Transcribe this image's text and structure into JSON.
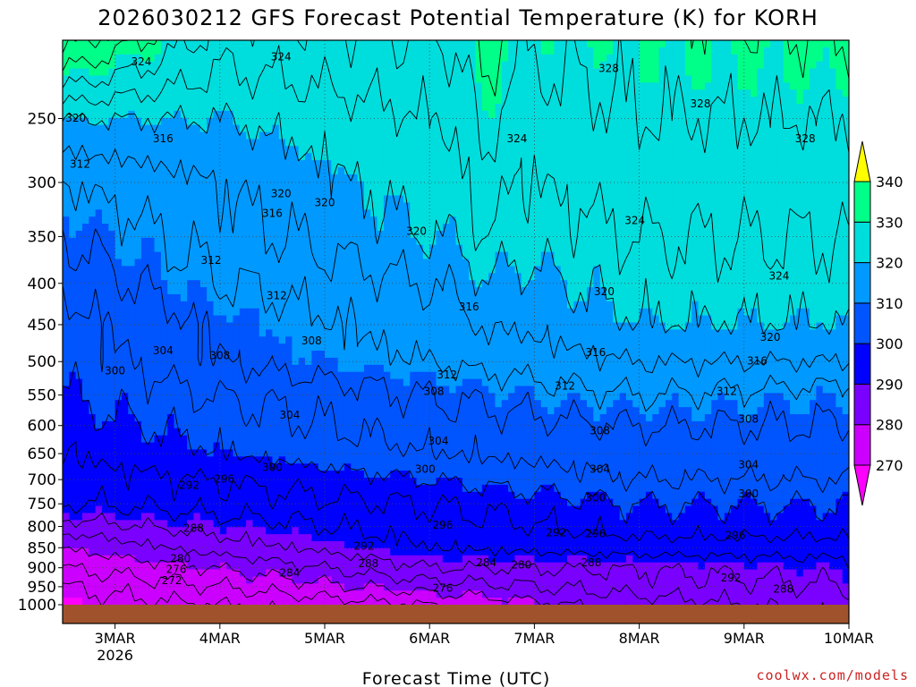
{
  "chart_data": {
    "type": "heatmap",
    "title": "2026030212 GFS Forecast Potential Temperature (K) for KORH",
    "xlabel": "Forecast Time (UTC)",
    "ylabel": "",
    "credit": "coolwx.com/models",
    "x_ticks": [
      {
        "label": "3MAR",
        "sublabel": "2026",
        "hour": 12
      },
      {
        "label": "4MAR",
        "sublabel": "",
        "hour": 36
      },
      {
        "label": "5MAR",
        "sublabel": "",
        "hour": 60
      },
      {
        "label": "6MAR",
        "sublabel": "",
        "hour": 84
      },
      {
        "label": "7MAR",
        "sublabel": "",
        "hour": 108
      },
      {
        "label": "8MAR",
        "sublabel": "",
        "hour": 132
      },
      {
        "label": "9MAR",
        "sublabel": "",
        "hour": 156
      },
      {
        "label": "10MAR",
        "sublabel": "",
        "hour": 180
      }
    ],
    "x_range_hours": [
      0,
      180
    ],
    "y_ticks_hpa": [
      250,
      300,
      350,
      400,
      450,
      500,
      550,
      600,
      650,
      700,
      750,
      800,
      850,
      900,
      950,
      1000
    ],
    "y_range_hpa": [
      200,
      1000
    ],
    "colorbar": {
      "levels": [
        270,
        280,
        290,
        300,
        310,
        320,
        330,
        340
      ],
      "colors": [
        "#ff00ff",
        "#cc00ff",
        "#7a00ff",
        "#0000ff",
        "#0055ff",
        "#0099ff",
        "#00dddd",
        "#00ff88",
        "#55ff00",
        "#ffff00"
      ]
    },
    "series": [
      {
        "name": "theta_profile_hour_0",
        "hour": 0,
        "pressure_hpa": [
          1000,
          950,
          900,
          850,
          800,
          750,
          700,
          650,
          600,
          550,
          500,
          450,
          400,
          350,
          300,
          250,
          200
        ],
        "theta_k": [
          270,
          272,
          276,
          280,
          286,
          292,
          294,
          296,
          298,
          300,
          301,
          302,
          305,
          308,
          312,
          320,
          338
        ]
      },
      {
        "name": "theta_profile_hour_36",
        "hour": 36,
        "pressure_hpa": [
          1000,
          950,
          900,
          850,
          800,
          750,
          700,
          650,
          600,
          550,
          500,
          450,
          400,
          350,
          300,
          250,
          200
        ],
        "theta_k": [
          272,
          276,
          280,
          286,
          290,
          294,
          296,
          300,
          302,
          304,
          308,
          309,
          312,
          314,
          316,
          320,
          326
        ]
      },
      {
        "name": "theta_profile_hour_84",
        "hour": 84,
        "pressure_hpa": [
          1000,
          950,
          900,
          850,
          800,
          750,
          700,
          650,
          600,
          550,
          500,
          450,
          400,
          350,
          300,
          250,
          200
        ],
        "theta_k": [
          276,
          282,
          288,
          292,
          294,
          296,
          300,
          304,
          306,
          308,
          312,
          314,
          316,
          320,
          322,
          324,
          328
        ]
      },
      {
        "name": "theta_profile_hour_132",
        "hour": 132,
        "pressure_hpa": [
          1000,
          950,
          900,
          850,
          800,
          750,
          700,
          650,
          600,
          550,
          500,
          450,
          400,
          350,
          300,
          250,
          200
        ],
        "theta_k": [
          282,
          286,
          288,
          294,
          298,
          300,
          304,
          306,
          308,
          312,
          316,
          320,
          322,
          324,
          326,
          328,
          330
        ]
      },
      {
        "name": "theta_profile_hour_180",
        "hour": 180,
        "pressure_hpa": [
          1000,
          950,
          900,
          850,
          800,
          750,
          700,
          650,
          600,
          550,
          500,
          450,
          400,
          350,
          300,
          250,
          200
        ],
        "theta_k": [
          286,
          288,
          290,
          294,
          298,
          300,
          304,
          306,
          308,
          310,
          316,
          320,
          322,
          324,
          326,
          328,
          332
        ]
      }
    ],
    "contour_labels": [
      {
        "text": "324",
        "hour": 18,
        "hpa": 213
      },
      {
        "text": "324",
        "hour": 50,
        "hpa": 210
      },
      {
        "text": "328",
        "hour": 125,
        "hpa": 217
      },
      {
        "text": "328",
        "hour": 146,
        "hpa": 240
      },
      {
        "text": "328",
        "hour": 170,
        "hpa": 265
      },
      {
        "text": "320",
        "hour": 3,
        "hpa": 250
      },
      {
        "text": "316",
        "hour": 23,
        "hpa": 265
      },
      {
        "text": "312",
        "hour": 4,
        "hpa": 285
      },
      {
        "text": "324",
        "hour": 104,
        "hpa": 265
      },
      {
        "text": "320",
        "hour": 50,
        "hpa": 310
      },
      {
        "text": "316",
        "hour": 48,
        "hpa": 328
      },
      {
        "text": "320",
        "hour": 60,
        "hpa": 318
      },
      {
        "text": "320",
        "hour": 81,
        "hpa": 345
      },
      {
        "text": "324",
        "hour": 131,
        "hpa": 335
      },
      {
        "text": "312",
        "hour": 34,
        "hpa": 375
      },
      {
        "text": "324",
        "hour": 164,
        "hpa": 392
      },
      {
        "text": "320",
        "hour": 124,
        "hpa": 410
      },
      {
        "text": "312",
        "hour": 49,
        "hpa": 415
      },
      {
        "text": "316",
        "hour": 93,
        "hpa": 428
      },
      {
        "text": "320",
        "hour": 162,
        "hpa": 467
      },
      {
        "text": "304",
        "hour": 23,
        "hpa": 485
      },
      {
        "text": "308",
        "hour": 36,
        "hpa": 492
      },
      {
        "text": "308",
        "hour": 57,
        "hpa": 472
      },
      {
        "text": "316",
        "hour": 122,
        "hpa": 488
      },
      {
        "text": "316",
        "hour": 159,
        "hpa": 500
      },
      {
        "text": "300",
        "hour": 12,
        "hpa": 514
      },
      {
        "text": "312",
        "hour": 88,
        "hpa": 520
      },
      {
        "text": "312",
        "hour": 115,
        "hpa": 537
      },
      {
        "text": "308",
        "hour": 85,
        "hpa": 545
      },
      {
        "text": "312",
        "hour": 152,
        "hpa": 545
      },
      {
        "text": "304",
        "hour": 52,
        "hpa": 583
      },
      {
        "text": "308",
        "hour": 157,
        "hpa": 590
      },
      {
        "text": "308",
        "hour": 123,
        "hpa": 610
      },
      {
        "text": "304",
        "hour": 86,
        "hpa": 628
      },
      {
        "text": "300",
        "hour": 48,
        "hpa": 677
      },
      {
        "text": "300",
        "hour": 83,
        "hpa": 680
      },
      {
        "text": "304",
        "hour": 123,
        "hpa": 680
      },
      {
        "text": "304",
        "hour": 157,
        "hpa": 672
      },
      {
        "text": "292",
        "hour": 29,
        "hpa": 712
      },
      {
        "text": "296",
        "hour": 37,
        "hpa": 700
      },
      {
        "text": "300",
        "hour": 122,
        "hpa": 738
      },
      {
        "text": "300",
        "hour": 157,
        "hpa": 730
      },
      {
        "text": "288",
        "hour": 30,
        "hpa": 805
      },
      {
        "text": "296",
        "hour": 87,
        "hpa": 798
      },
      {
        "text": "292",
        "hour": 113,
        "hpa": 815
      },
      {
        "text": "296",
        "hour": 122,
        "hpa": 818
      },
      {
        "text": "296",
        "hour": 154,
        "hpa": 822
      },
      {
        "text": "292",
        "hour": 69,
        "hpa": 847
      },
      {
        "text": "280",
        "hour": 27,
        "hpa": 878
      },
      {
        "text": "288",
        "hour": 70,
        "hpa": 890
      },
      {
        "text": "284",
        "hour": 97,
        "hpa": 888
      },
      {
        "text": "280",
        "hour": 105,
        "hpa": 894
      },
      {
        "text": "288",
        "hour": 121,
        "hpa": 888
      },
      {
        "text": "276",
        "hour": 26,
        "hpa": 905
      },
      {
        "text": "284",
        "hour": 52,
        "hpa": 915
      },
      {
        "text": "292",
        "hour": 153,
        "hpa": 928
      },
      {
        "text": "272",
        "hour": 25,
        "hpa": 935
      },
      {
        "text": "276",
        "hour": 87,
        "hpa": 955
      },
      {
        "text": "288",
        "hour": 165,
        "hpa": 957
      }
    ]
  }
}
